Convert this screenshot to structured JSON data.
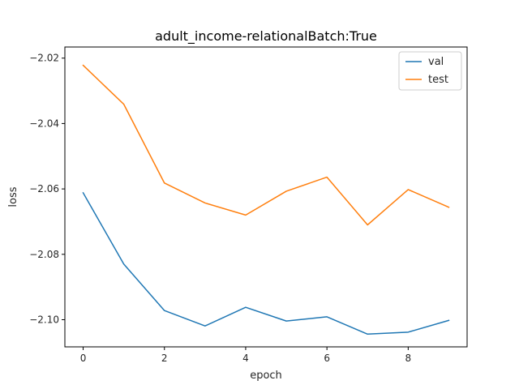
{
  "chart_data": {
    "type": "line",
    "title": "adult_income-relationalBatch:True",
    "xlabel": "epoch",
    "ylabel": "loss",
    "x": [
      0,
      1,
      2,
      3,
      4,
      5,
      6,
      7,
      8,
      9
    ],
    "xlim": [
      -0.45,
      9.45
    ],
    "ylim": [
      -2.1083,
      -2.0166
    ],
    "xticks": [
      0,
      2,
      4,
      6,
      8
    ],
    "yticks": [
      -2.1,
      -2.08,
      -2.06,
      -2.04,
      -2.02
    ],
    "ytick_labels": [
      "−2.10",
      "−2.08",
      "−2.06",
      "−2.04",
      "−2.02"
    ],
    "grid": false,
    "legend_position": "top-right",
    "series": [
      {
        "name": "val",
        "color": "#1f77b4",
        "values": [
          -2.0612,
          -2.083,
          -2.0972,
          -2.1019,
          -2.0962,
          -2.1004,
          -2.0991,
          -2.1044,
          -2.1038,
          -2.1002
        ]
      },
      {
        "name": "test",
        "color": "#ff7f0e",
        "values": [
          -2.0222,
          -2.0341,
          -2.0582,
          -2.0643,
          -2.068,
          -2.0607,
          -2.0564,
          -2.071,
          -2.0602,
          -2.0656
        ]
      }
    ]
  }
}
